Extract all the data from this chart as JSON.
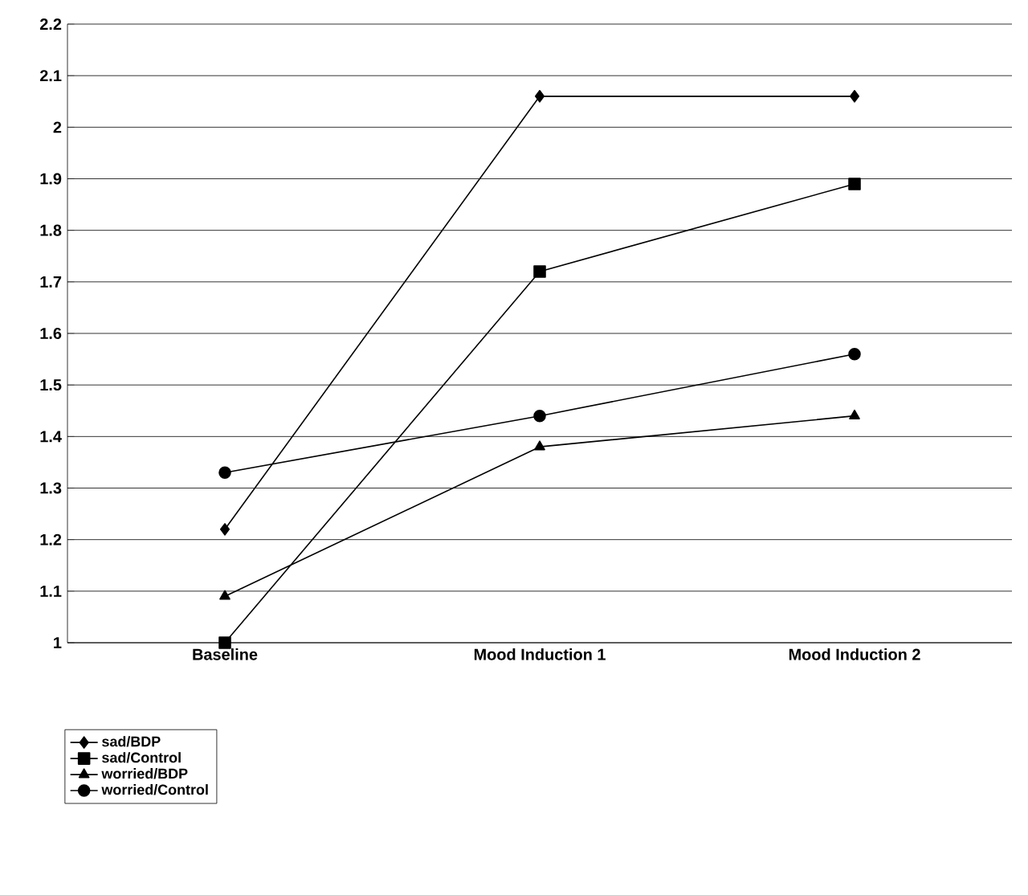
{
  "chart_data": {
    "type": "line",
    "categories": [
      "Baseline",
      "Mood Induction 1",
      "Mood Induction 2"
    ],
    "series": [
      {
        "name": "sad/BDP",
        "color": "#000000",
        "marker": "diamond",
        "values": [
          1.22,
          2.06,
          2.06
        ]
      },
      {
        "name": "sad/Control",
        "color": "#000000",
        "marker": "square",
        "values": [
          1.0,
          1.72,
          1.89
        ]
      },
      {
        "name": "worried/BDP",
        "color": "#000000",
        "marker": "triangle",
        "values": [
          1.09,
          1.38,
          1.44
        ]
      },
      {
        "name": "worried/Control",
        "color": "#000000",
        "marker": "circle",
        "values": [
          1.33,
          1.44,
          1.56
        ]
      }
    ],
    "ylim": [
      1,
      2.2
    ],
    "yticks": [
      1,
      1.1,
      1.2,
      1.3,
      1.4,
      1.5,
      1.6,
      1.7,
      1.8,
      1.9,
      2,
      2.1,
      2.2
    ],
    "grid": "y",
    "legend": "bottom left",
    "line_style": "solid"
  }
}
